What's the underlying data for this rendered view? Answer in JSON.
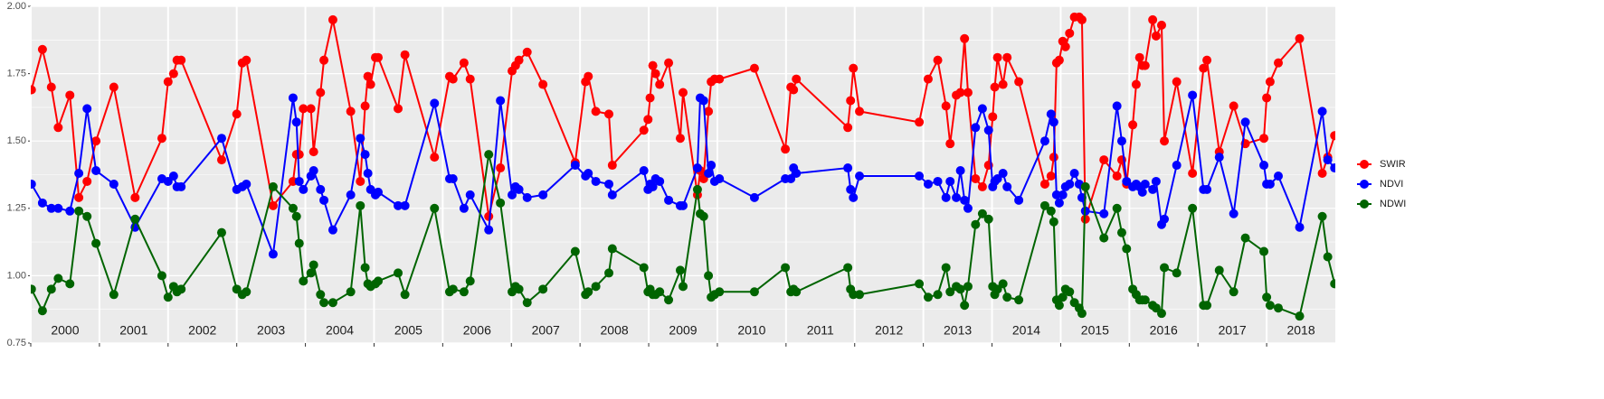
{
  "chart_data": {
    "type": "line",
    "x": [
      2000.01,
      2000.17,
      2000.3,
      2000.4,
      2000.57,
      2000.7,
      2000.82,
      2000.95,
      2001.21,
      2001.52,
      2001.91,
      2002.0,
      2002.08,
      2002.13,
      2002.19,
      2002.78,
      2003.0,
      2003.08,
      2003.14,
      2003.53,
      2003.82,
      2003.87,
      2003.91,
      2003.97,
      2004.08,
      2004.12,
      2004.22,
      2004.27,
      2004.4,
      2004.66,
      2004.8,
      2004.87,
      2004.91,
      2004.95,
      2005.02,
      2005.06,
      2005.35,
      2005.45,
      2005.88,
      2006.1,
      2006.15,
      2006.31,
      2006.4,
      2006.67,
      2006.84,
      2007.01,
      2007.06,
      2007.11,
      2007.23,
      2007.46,
      2007.93,
      2008.08,
      2008.12,
      2008.23,
      2008.42,
      2008.47,
      2008.93,
      2008.99,
      2009.02,
      2009.06,
      2009.1,
      2009.16,
      2009.29,
      2009.46,
      2009.5,
      2009.71,
      2009.75,
      2009.8,
      2009.87,
      2009.91,
      2009.96,
      2010.03,
      2010.54,
      2010.99,
      2011.07,
      2011.11,
      2011.15,
      2011.9,
      2011.94,
      2011.98,
      2012.07,
      2012.94,
      2013.07,
      2013.21,
      2013.33,
      2013.39,
      2013.48,
      2013.54,
      2013.6,
      2013.65,
      2013.76,
      2013.86,
      2013.95,
      2014.01,
      2014.04,
      2014.08,
      2014.16,
      2014.22,
      2014.39,
      2014.77,
      2014.86,
      2014.9,
      2014.94,
      2014.98,
      2015.03,
      2015.07,
      2015.13,
      2015.2,
      2015.27,
      2015.31,
      2015.36,
      2015.63,
      2015.82,
      2015.89,
      2015.96,
      2016.05,
      2016.1,
      2016.15,
      2016.19,
      2016.23,
      2016.34,
      2016.39,
      2016.47,
      2016.51,
      2016.69,
      2016.92,
      2017.08,
      2017.13,
      2017.31,
      2017.52,
      2017.69,
      2017.96,
      2018.0,
      2018.05,
      2018.17,
      2018.48,
      2018.81,
      2018.89,
      2018.99
    ],
    "series": [
      {
        "name": "SWIR",
        "color": "#ff0000",
        "values": [
          1.69,
          1.84,
          1.7,
          1.55,
          1.67,
          1.29,
          1.35,
          1.5,
          1.7,
          1.29,
          1.51,
          1.72,
          1.75,
          1.8,
          1.8,
          1.43,
          1.6,
          1.79,
          1.8,
          1.26,
          1.35,
          1.45,
          1.45,
          1.62,
          1.62,
          1.46,
          1.68,
          1.8,
          1.95,
          1.61,
          1.35,
          1.63,
          1.74,
          1.71,
          1.81,
          1.81,
          1.62,
          1.82,
          1.44,
          1.74,
          1.73,
          1.79,
          1.73,
          1.22,
          1.4,
          1.76,
          1.78,
          1.8,
          1.83,
          1.71,
          1.42,
          1.72,
          1.74,
          1.61,
          1.6,
          1.41,
          1.54,
          1.58,
          1.66,
          1.78,
          1.75,
          1.71,
          1.79,
          1.51,
          1.68,
          1.3,
          1.39,
          1.36,
          1.61,
          1.72,
          1.73,
          1.73,
          1.77,
          1.47,
          1.7,
          1.69,
          1.73,
          1.55,
          1.65,
          1.77,
          1.61,
          1.57,
          1.73,
          1.8,
          1.63,
          1.49,
          1.67,
          1.68,
          1.88,
          1.68,
          1.36,
          1.33,
          1.41,
          1.59,
          1.7,
          1.81,
          1.71,
          1.81,
          1.72,
          1.34,
          1.37,
          1.44,
          1.79,
          1.8,
          1.87,
          1.85,
          1.9,
          1.96,
          1.96,
          1.95,
          1.21,
          1.43,
          1.37,
          1.43,
          1.34,
          1.56,
          1.71,
          1.81,
          1.78,
          1.78,
          1.95,
          1.89,
          1.93,
          1.5,
          1.72,
          1.38,
          1.77,
          1.8,
          1.46,
          1.63,
          1.49,
          1.51,
          1.66,
          1.72,
          1.79,
          1.88,
          1.38,
          1.44,
          1.52
        ]
      },
      {
        "name": "NDVI",
        "color": "#0000ff",
        "values": [
          1.34,
          1.27,
          1.25,
          1.25,
          1.24,
          1.38,
          1.62,
          1.39,
          1.34,
          1.18,
          1.36,
          1.35,
          1.37,
          1.33,
          1.33,
          1.51,
          1.32,
          1.33,
          1.34,
          1.08,
          1.66,
          1.57,
          1.35,
          1.32,
          1.37,
          1.39,
          1.32,
          1.28,
          1.17,
          1.3,
          1.51,
          1.45,
          1.38,
          1.32,
          1.3,
          1.31,
          1.26,
          1.26,
          1.64,
          1.36,
          1.36,
          1.25,
          1.3,
          1.17,
          1.65,
          1.3,
          1.33,
          1.32,
          1.29,
          1.3,
          1.41,
          1.37,
          1.38,
          1.35,
          1.34,
          1.3,
          1.39,
          1.32,
          1.34,
          1.33,
          1.36,
          1.35,
          1.28,
          1.26,
          1.26,
          1.4,
          1.66,
          1.65,
          1.38,
          1.41,
          1.35,
          1.36,
          1.29,
          1.36,
          1.36,
          1.4,
          1.38,
          1.4,
          1.32,
          1.29,
          1.37,
          1.37,
          1.34,
          1.35,
          1.29,
          1.35,
          1.29,
          1.39,
          1.28,
          1.25,
          1.55,
          1.62,
          1.54,
          1.33,
          1.35,
          1.36,
          1.38,
          1.33,
          1.28,
          1.5,
          1.6,
          1.57,
          1.3,
          1.27,
          1.3,
          1.33,
          1.34,
          1.38,
          1.34,
          1.29,
          1.24,
          1.23,
          1.63,
          1.5,
          1.35,
          1.33,
          1.34,
          1.33,
          1.31,
          1.34,
          1.32,
          1.35,
          1.19,
          1.21,
          1.41,
          1.67,
          1.32,
          1.32,
          1.44,
          1.23,
          1.57,
          1.41,
          1.34,
          1.34,
          1.37,
          1.18,
          1.61,
          1.43,
          1.4
        ]
      },
      {
        "name": "NDWI",
        "color": "#006400",
        "values": [
          0.95,
          0.87,
          0.95,
          0.99,
          0.97,
          1.24,
          1.22,
          1.12,
          0.93,
          1.21,
          1.0,
          0.92,
          0.96,
          0.94,
          0.95,
          1.16,
          0.95,
          0.93,
          0.94,
          1.33,
          1.25,
          1.22,
          1.12,
          0.98,
          1.01,
          1.04,
          0.93,
          0.9,
          0.9,
          0.94,
          1.26,
          1.03,
          0.97,
          0.96,
          0.97,
          0.98,
          1.01,
          0.93,
          1.25,
          0.94,
          0.95,
          0.94,
          0.98,
          1.45,
          1.27,
          0.94,
          0.96,
          0.95,
          0.9,
          0.95,
          1.09,
          0.93,
          0.94,
          0.96,
          1.01,
          1.1,
          1.03,
          0.94,
          0.95,
          0.93,
          0.93,
          0.94,
          0.91,
          1.02,
          0.96,
          1.32,
          1.23,
          1.22,
          1.0,
          0.92,
          0.93,
          0.94,
          0.94,
          1.03,
          0.94,
          0.95,
          0.94,
          1.03,
          0.95,
          0.93,
          0.93,
          0.97,
          0.92,
          0.93,
          1.03,
          0.94,
          0.96,
          0.95,
          0.89,
          0.96,
          1.19,
          1.23,
          1.21,
          0.96,
          0.93,
          0.95,
          0.97,
          0.92,
          0.91,
          1.26,
          1.24,
          1.2,
          0.91,
          0.89,
          0.92,
          0.95,
          0.94,
          0.9,
          0.88,
          0.86,
          1.33,
          1.14,
          1.25,
          1.16,
          1.1,
          0.95,
          0.93,
          0.91,
          0.91,
          0.91,
          0.89,
          0.88,
          0.86,
          1.03,
          1.01,
          1.25,
          0.89,
          0.89,
          1.02,
          0.94,
          1.14,
          1.09,
          0.92,
          0.89,
          0.88,
          0.85,
          1.22,
          1.07,
          0.97
        ]
      }
    ],
    "xlim": [
      2000,
      2019
    ],
    "xticks": [
      2000,
      2001,
      2002,
      2003,
      2004,
      2005,
      2006,
      2007,
      2008,
      2009,
      2010,
      2011,
      2012,
      2013,
      2014,
      2015,
      2016,
      2017,
      2018
    ],
    "ylim": [
      0.75,
      2.0
    ],
    "yticks": [
      {
        "value": 0.75,
        "label": "0.75"
      },
      {
        "value": 1.0,
        "label": "1.00"
      },
      {
        "value": 1.25,
        "label": "1.25"
      },
      {
        "value": 1.5,
        "label": "1.50"
      },
      {
        "value": 1.75,
        "label": "1.75"
      },
      {
        "value": 2.0,
        "label": "2.00"
      }
    ],
    "grid": true,
    "legend": "right"
  }
}
